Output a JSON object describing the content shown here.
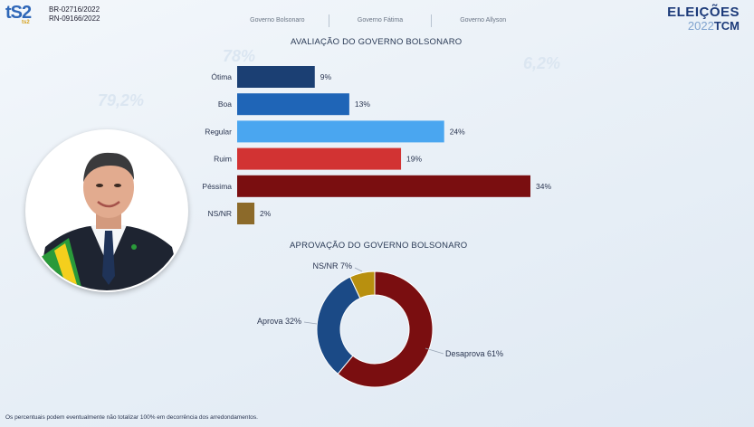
{
  "header": {
    "logo_text": "tS2",
    "logo_sub": "ts2",
    "registrations": [
      "BR-02716/2022",
      "RN-09166/2022"
    ],
    "tabs": [
      "Governo Bolsonaro",
      "Governo Fátima",
      "Governo Allyson"
    ],
    "brand_top": "ELEIÇÕES",
    "brand_year": "2022",
    "brand_tcm": "TCM"
  },
  "background_numbers": [
    "78%",
    "79,2%",
    "6,2%"
  ],
  "footnote": "Os percentuais podem eventualmente não totalizar 100% em decorrência dos arredondamentos.",
  "chart_data": [
    {
      "type": "bar",
      "orientation": "horizontal",
      "title": "AVALIAÇÃO DO GOVERNO BOLSONARO",
      "categories": [
        "Ótima",
        "Boa",
        "Regular",
        "Ruim",
        "Péssima",
        "NS/NR"
      ],
      "values": [
        9,
        13,
        24,
        19,
        34,
        2
      ],
      "value_labels": [
        "9%",
        "13%",
        "24%",
        "19%",
        "34%",
        "2%"
      ],
      "colors": [
        "#1b3f73",
        "#1f65b7",
        "#4aa6f0",
        "#d23333",
        "#7a0e10",
        "#8c6a2a"
      ],
      "xlim": [
        0,
        34
      ],
      "grid": false
    },
    {
      "type": "pie",
      "variant": "donut",
      "title": "APROVAÇÃO DO GOVERNO BOLSONARO",
      "categories": [
        "Desaprova",
        "Aprova",
        "NS/NR"
      ],
      "values": [
        61,
        32,
        7
      ],
      "slice_labels": [
        "Desaprova 61%",
        "Aprova 32%",
        "NS/NR 7%"
      ],
      "colors": [
        "#7a0e10",
        "#1b4a86",
        "#b8900f"
      ]
    }
  ]
}
